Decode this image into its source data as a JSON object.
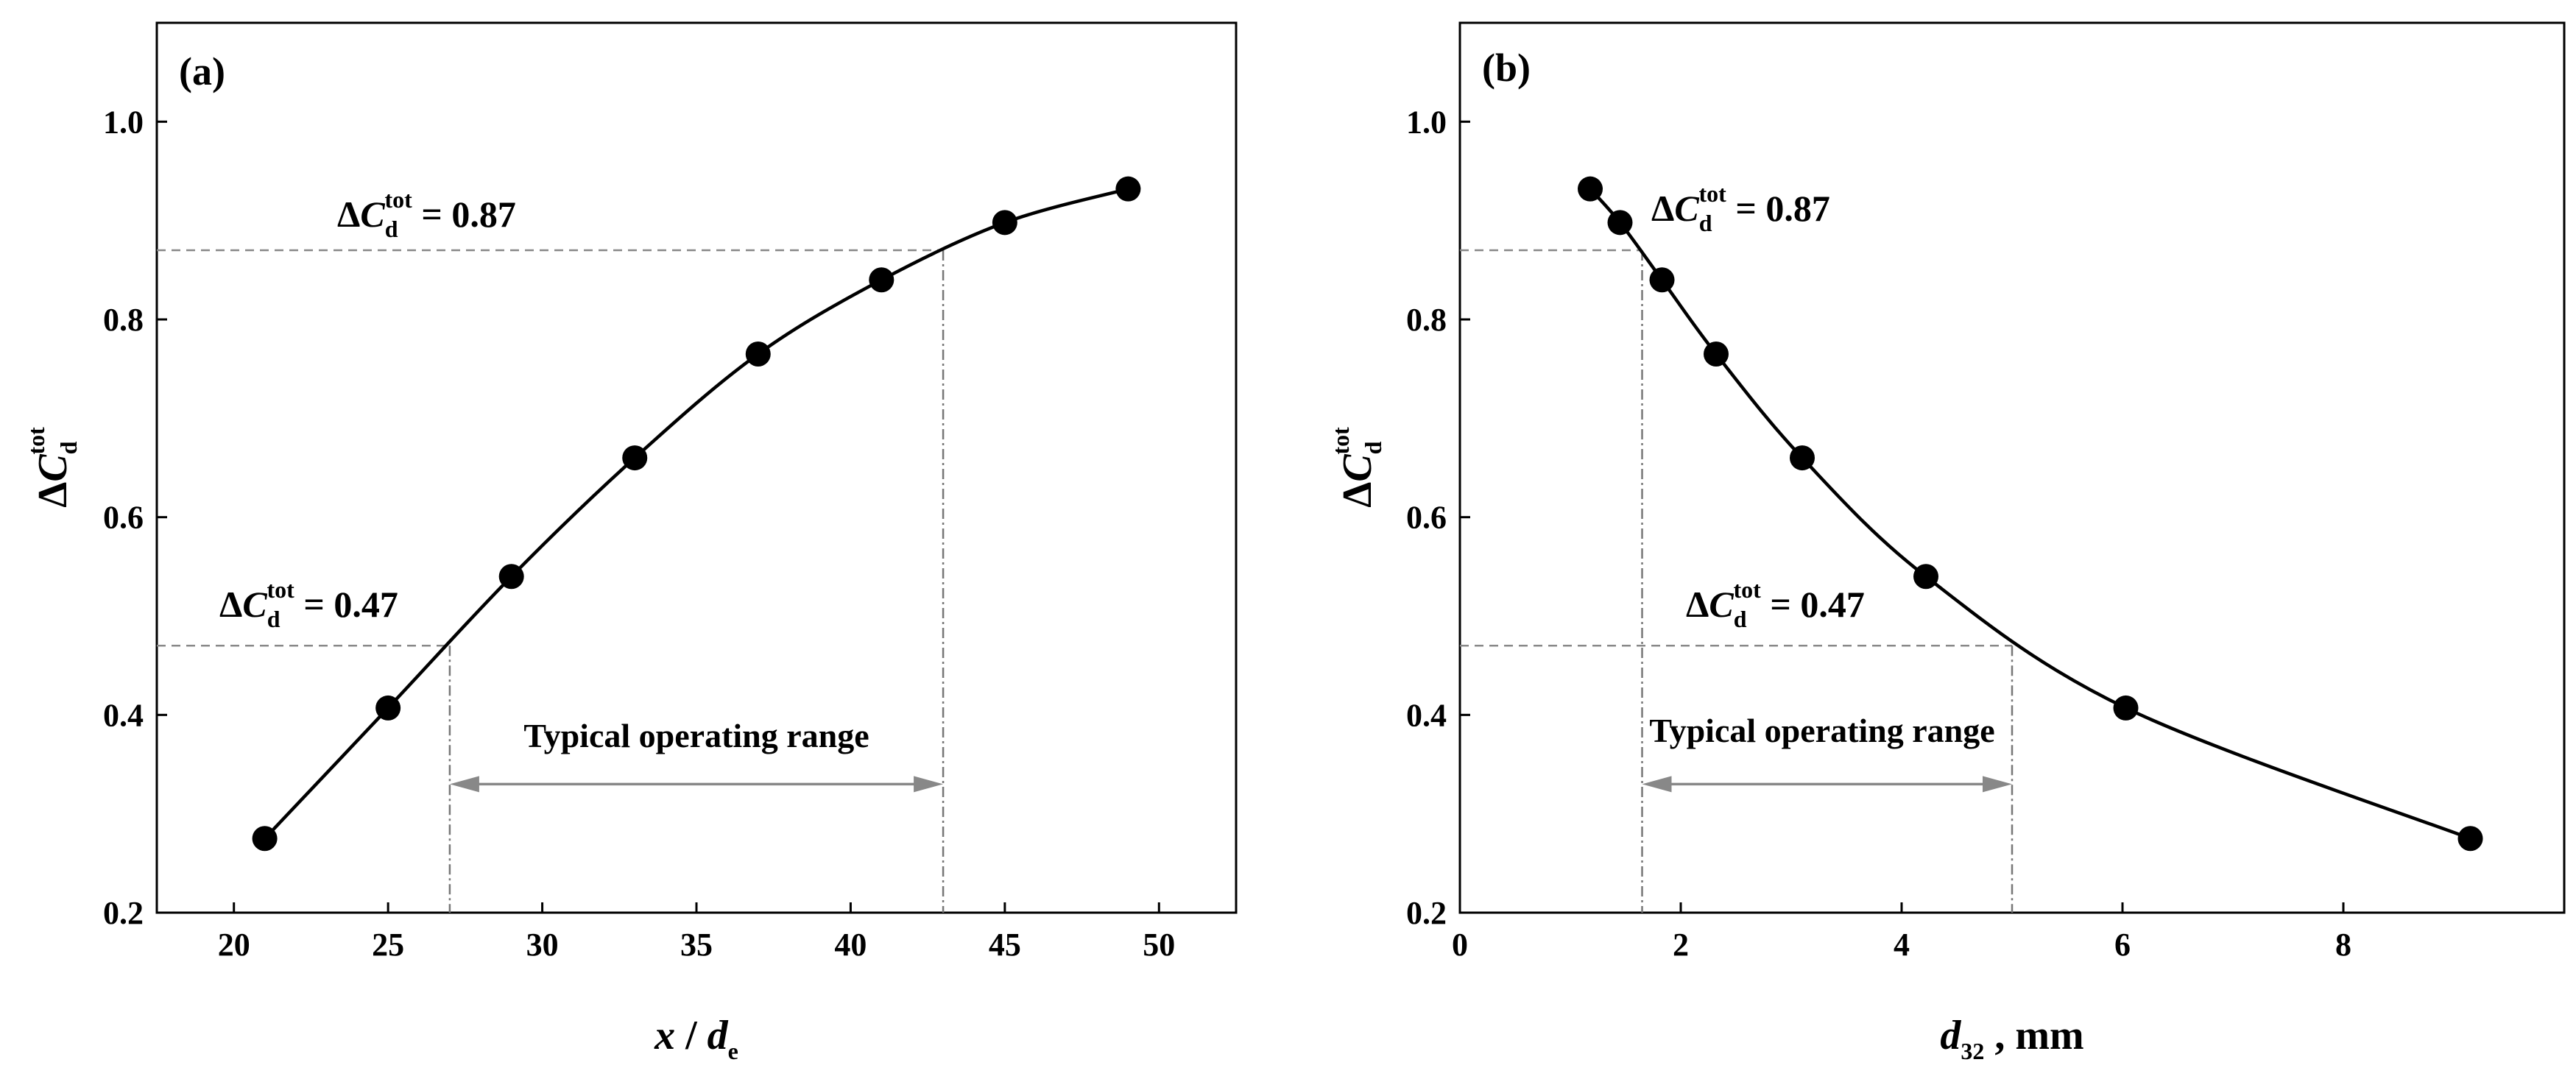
{
  "chart_data": [
    {
      "type": "line",
      "panel": "(a)",
      "xlabel": {
        "var": "x",
        "sep": " / ",
        "var2": "d",
        "sub2": "e"
      },
      "ylabel": {
        "delta": "Δ",
        "var": "C",
        "sub": "d",
        "sup": "tot"
      },
      "xlim": [
        17.5,
        52.5
      ],
      "ylim": [
        0.2,
        1.1
      ],
      "xticks": [
        20,
        25,
        30,
        35,
        40,
        45,
        50
      ],
      "yticks": [
        0.2,
        0.4,
        0.6,
        0.8,
        1.0
      ],
      "xtick_labels": [
        "20",
        "25",
        "30",
        "35",
        "40",
        "45",
        "50"
      ],
      "ytick_labels": [
        "0.2",
        "0.4",
        "0.6",
        "0.8",
        "1.0"
      ],
      "series": [
        {
          "name": "ΔCd_tot vs x/de",
          "x": [
            21,
            25,
            29,
            33,
            37,
            41,
            45,
            49
          ],
          "y": [
            0.275,
            0.407,
            0.54,
            0.66,
            0.765,
            0.84,
            0.898,
            0.932
          ]
        }
      ],
      "reference_lines": [
        {
          "y": 0.87,
          "x": 43,
          "label_value": "0.87"
        },
        {
          "y": 0.47,
          "x": 27,
          "label_value": "0.47"
        }
      ],
      "range": {
        "from": 27,
        "to": 43,
        "y": 0.33,
        "label": "Typical operating range"
      }
    },
    {
      "type": "line",
      "panel": "(b)",
      "xlabel": {
        "var": "d",
        "sub": "32",
        "unit": " , mm"
      },
      "ylabel": {
        "delta": "Δ",
        "var": "C",
        "sub": "d",
        "sup": "tot"
      },
      "xlim": [
        0,
        10
      ],
      "ylim": [
        0.2,
        1.1
      ],
      "xticks": [
        0,
        2,
        4,
        6,
        8
      ],
      "yticks": [
        0.2,
        0.4,
        0.6,
        0.8,
        1.0
      ],
      "xtick_labels": [
        "0",
        "2",
        "4",
        "6",
        "8"
      ],
      "ytick_labels": [
        "0.2",
        "0.4",
        "0.6",
        "0.8",
        "1.0"
      ],
      "series": [
        {
          "name": "ΔCd_tot vs d32",
          "x": [
            1.18,
            1.45,
            1.83,
            2.32,
            3.1,
            4.22,
            6.03,
            9.15
          ],
          "y": [
            0.932,
            0.898,
            0.84,
            0.765,
            0.66,
            0.54,
            0.407,
            0.275
          ]
        }
      ],
      "reference_lines": [
        {
          "y": 0.87,
          "x": 1.65,
          "label_value": "0.87"
        },
        {
          "y": 0.47,
          "x": 5.0,
          "label_value": "0.47"
        }
      ],
      "range": {
        "from": 1.65,
        "to": 5.0,
        "y": 0.33,
        "label": "Typical operating range"
      }
    }
  ]
}
